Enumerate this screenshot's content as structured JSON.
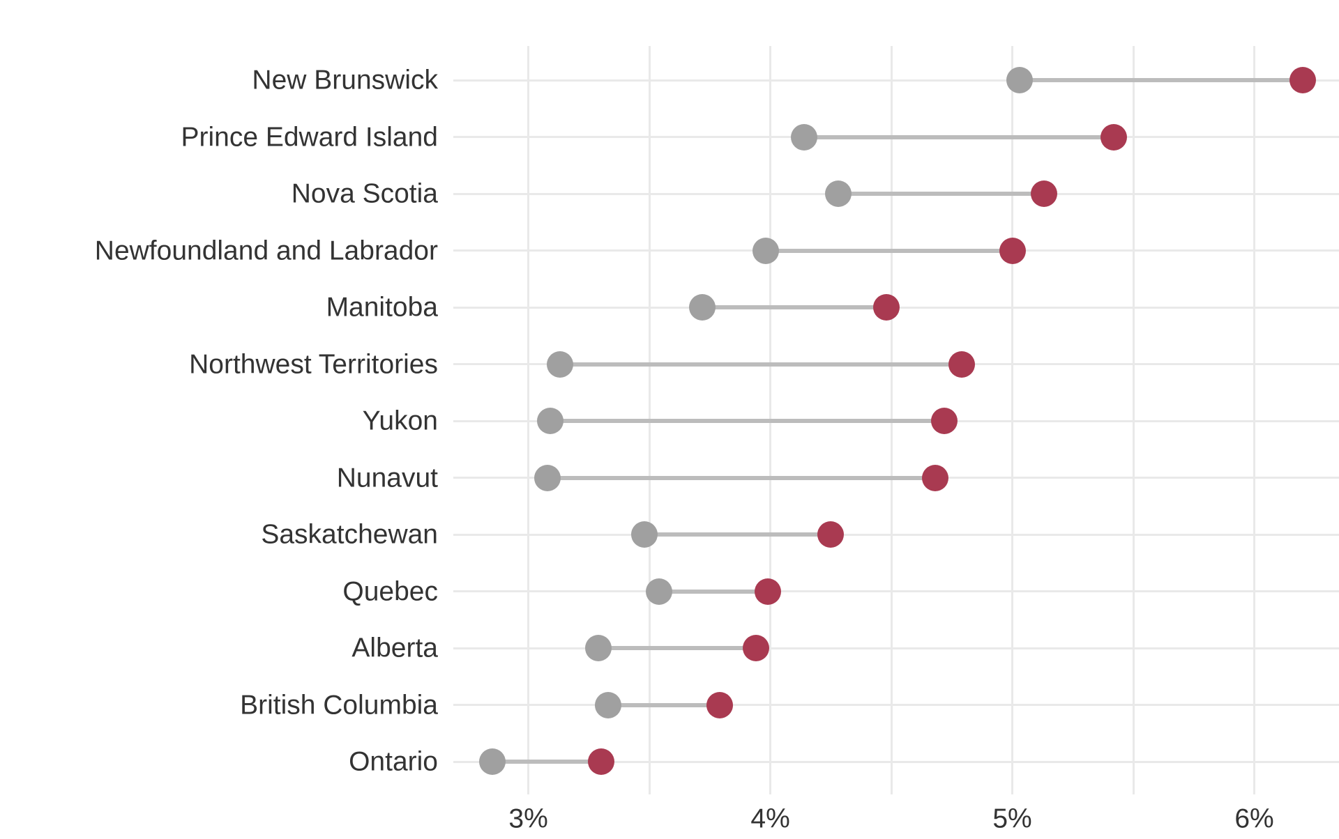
{
  "page": {
    "background_color": "#ffffff"
  },
  "chart_data": {
    "type": "scatter",
    "variant": "dumbbell",
    "orientation": "horizontal",
    "title": "",
    "xlabel": "",
    "ylabel": "",
    "legend": "none",
    "grid": true,
    "categories": [
      "New Brunswick",
      "Prince Edward Island",
      "Nova Scotia",
      "Newfoundland and Labrador",
      "Manitoba",
      "Northwest Territories",
      "Yukon",
      "Nunavut",
      "Saskatchewan",
      "Quebec",
      "Alberta",
      "British Columbia",
      "Ontario"
    ],
    "series": [
      {
        "name": "start-gray",
        "color": "#a0a0a0",
        "values": [
          5.03,
          4.14,
          4.28,
          3.98,
          3.72,
          3.13,
          3.09,
          3.08,
          3.48,
          3.54,
          3.29,
          3.33,
          2.85
        ]
      },
      {
        "name": "end-red",
        "color": "#a93a51",
        "values": [
          6.2,
          5.42,
          5.13,
          5.0,
          4.48,
          4.79,
          4.72,
          4.68,
          4.25,
          3.99,
          3.94,
          3.79,
          3.3
        ]
      }
    ],
    "xlim": [
      2.69,
      6.35
    ],
    "xticks": [
      3,
      4,
      5,
      6
    ],
    "xtick_labels": [
      "3%",
      "4%",
      "5%",
      "6%"
    ],
    "gridlines_x": [
      3,
      3.5,
      4,
      4.5,
      5,
      5.5,
      6
    ],
    "styles": {
      "gridline_color": "#e9e9e9",
      "row_line_color": "#e9e9e9",
      "connector_color": "#bcbcbc",
      "label_color": "#333333"
    }
  }
}
